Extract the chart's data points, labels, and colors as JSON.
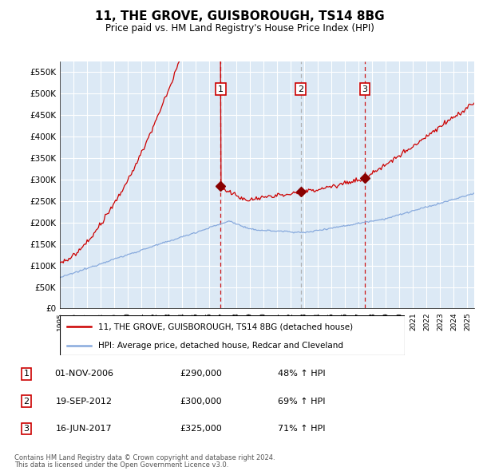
{
  "title": "11, THE GROVE, GUISBOROUGH, TS14 8BG",
  "subtitle": "Price paid vs. HM Land Registry's House Price Index (HPI)",
  "ylim": [
    0,
    575000
  ],
  "yticks": [
    0,
    50000,
    100000,
    150000,
    200000,
    250000,
    300000,
    350000,
    400000,
    450000,
    500000,
    550000
  ],
  "xlim_start": 1995.0,
  "xlim_end": 2025.5,
  "background_color": "#dce9f5",
  "grid_color": "#ffffff",
  "sale_markers": [
    {
      "label": "1",
      "date_num": 2006.84,
      "price": 290000,
      "linestyle": "dashed_red"
    },
    {
      "label": "2",
      "date_num": 2012.72,
      "price": 300000,
      "linestyle": "dashed_gray"
    },
    {
      "label": "3",
      "date_num": 2017.45,
      "price": 325000,
      "linestyle": "dashed_red"
    }
  ],
  "legend_line1": "11, THE GROVE, GUISBOROUGH, TS14 8BG (detached house)",
  "legend_line2": "HPI: Average price, detached house, Redcar and Cleveland",
  "table_rows": [
    {
      "num": "1",
      "date": "01-NOV-2006",
      "price": "£290,000",
      "hpi": "48% ↑ HPI"
    },
    {
      "num": "2",
      "date": "19-SEP-2012",
      "price": "£300,000",
      "hpi": "69% ↑ HPI"
    },
    {
      "num": "3",
      "date": "16-JUN-2017",
      "price": "£325,000",
      "hpi": "71% ↑ HPI"
    }
  ],
  "footnote1": "Contains HM Land Registry data © Crown copyright and database right 2024.",
  "footnote2": "This data is licensed under the Open Government Licence v3.0.",
  "line_color_red": "#cc0000",
  "line_color_blue": "#88aadd",
  "marker_dot_color": "#880000"
}
